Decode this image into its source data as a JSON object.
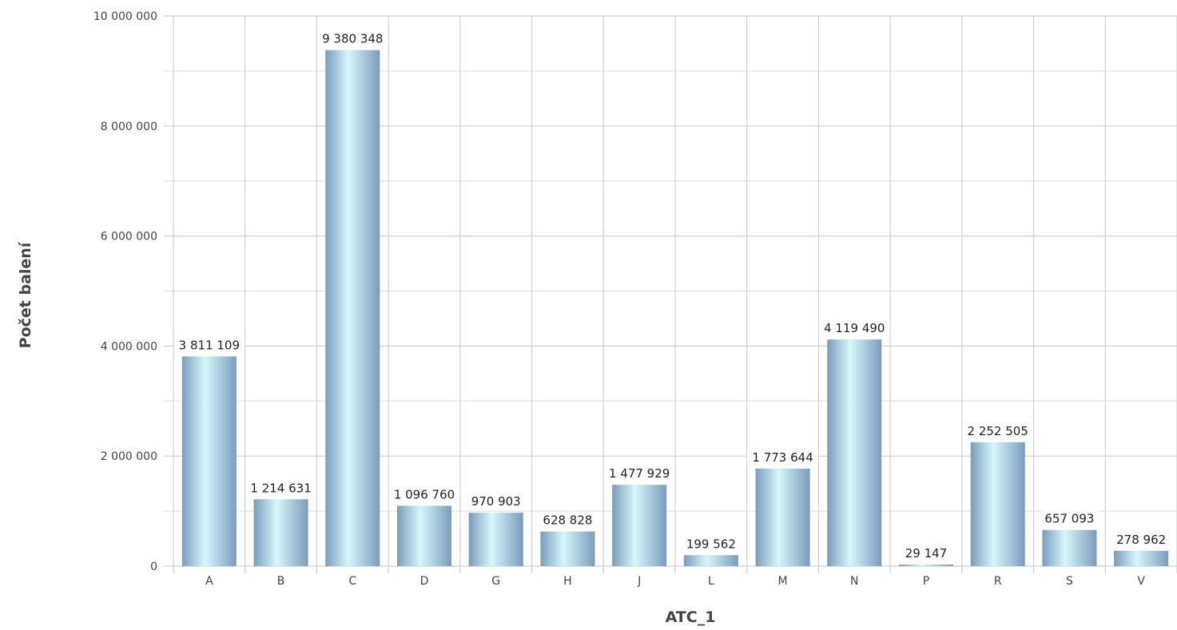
{
  "chart_data": {
    "type": "bar",
    "title": "",
    "xlabel": "ATC_1",
    "ylabel": "Počet balení",
    "categories": [
      "A",
      "B",
      "C",
      "D",
      "G",
      "H",
      "J",
      "L",
      "M",
      "N",
      "P",
      "R",
      "S",
      "V"
    ],
    "values": [
      3811109,
      1214631,
      9380348,
      1096760,
      970903,
      628828,
      1477929,
      199562,
      1773644,
      4119490,
      29147,
      2252505,
      657093,
      278962
    ],
    "value_labels": [
      "3 811 109",
      "1 214 631",
      "9 380 348",
      "1 096 760",
      "970 903",
      "628 828",
      "1 477 929",
      "199 562",
      "1 773 644",
      "4 119 490",
      "29 147",
      "2 252 505",
      "657 093",
      "278 962"
    ],
    "ylim": [
      0,
      10000000
    ],
    "y_ticks": [
      0,
      2000000,
      4000000,
      6000000,
      8000000,
      10000000
    ],
    "y_tick_labels": [
      "0",
      "2 000 000",
      "4 000 000",
      "6 000 000",
      "8 000 000",
      "10 000 000"
    ],
    "grid": true,
    "legend": "none",
    "colors": {
      "bar_edge": "#7a9cbc",
      "bar_center": "#d6f7fb",
      "grid": "#cfcfcf"
    }
  }
}
